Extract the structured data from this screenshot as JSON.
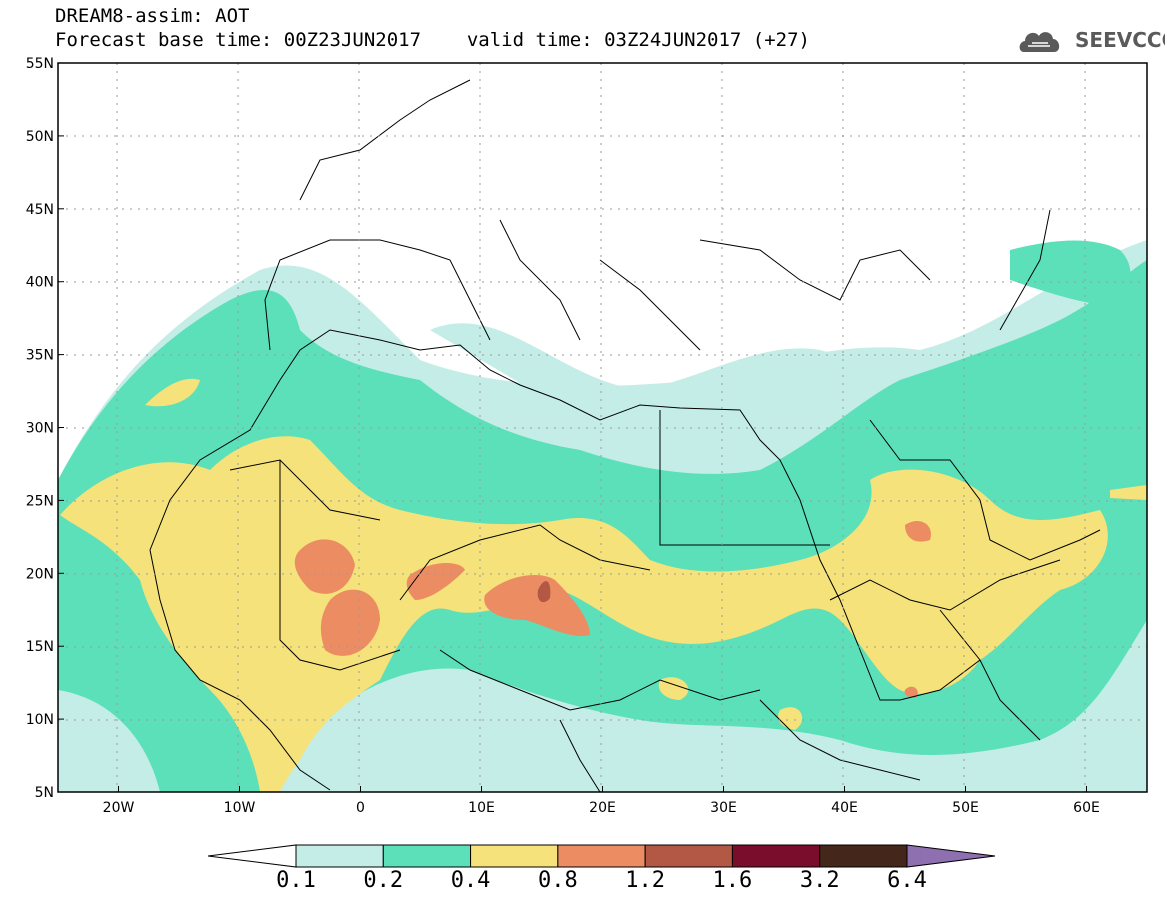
{
  "header": {
    "title_line1": "DREAM8-assim: AOT",
    "base_time_label": "Forecast base time: 00Z23JUN2017",
    "valid_time_label": "valid time: 03Z24JUN2017 (+27)"
  },
  "logo": {
    "text": "SEEVCCC",
    "icon": "cloud-icon"
  },
  "map": {
    "lon_range": [
      -25,
      65
    ],
    "lat_range": [
      5,
      55
    ],
    "lat_ticks": [
      {
        "value": 55,
        "label": "55N"
      },
      {
        "value": 50,
        "label": "50N"
      },
      {
        "value": 45,
        "label": "45N"
      },
      {
        "value": 40,
        "label": "40N"
      },
      {
        "value": 35,
        "label": "35N"
      },
      {
        "value": 30,
        "label": "30N"
      },
      {
        "value": 25,
        "label": "25N"
      },
      {
        "value": 20,
        "label": "20N"
      },
      {
        "value": 15,
        "label": "15N"
      },
      {
        "value": 10,
        "label": "10N"
      },
      {
        "value": 5,
        "label": "5N"
      }
    ],
    "lon_ticks": [
      {
        "value": -20,
        "label": "20W"
      },
      {
        "value": -10,
        "label": "10W"
      },
      {
        "value": 0,
        "label": "0"
      },
      {
        "value": 10,
        "label": "10E"
      },
      {
        "value": 20,
        "label": "20E"
      },
      {
        "value": 30,
        "label": "30E"
      },
      {
        "value": 40,
        "label": "40E"
      },
      {
        "value": 50,
        "label": "50E"
      },
      {
        "value": 60,
        "label": "60E"
      }
    ]
  },
  "colorbar": {
    "colors": [
      "#ffffff",
      "#c3ede6",
      "#5be0b9",
      "#f5e27a",
      "#ec8c63",
      "#b35845",
      "#7b0d2c",
      "#44261a",
      "#8e6fb0"
    ],
    "labels": [
      "0.1",
      "0.2",
      "0.4",
      "0.8",
      "1.2",
      "1.6",
      "3.2",
      "6.4"
    ]
  }
}
